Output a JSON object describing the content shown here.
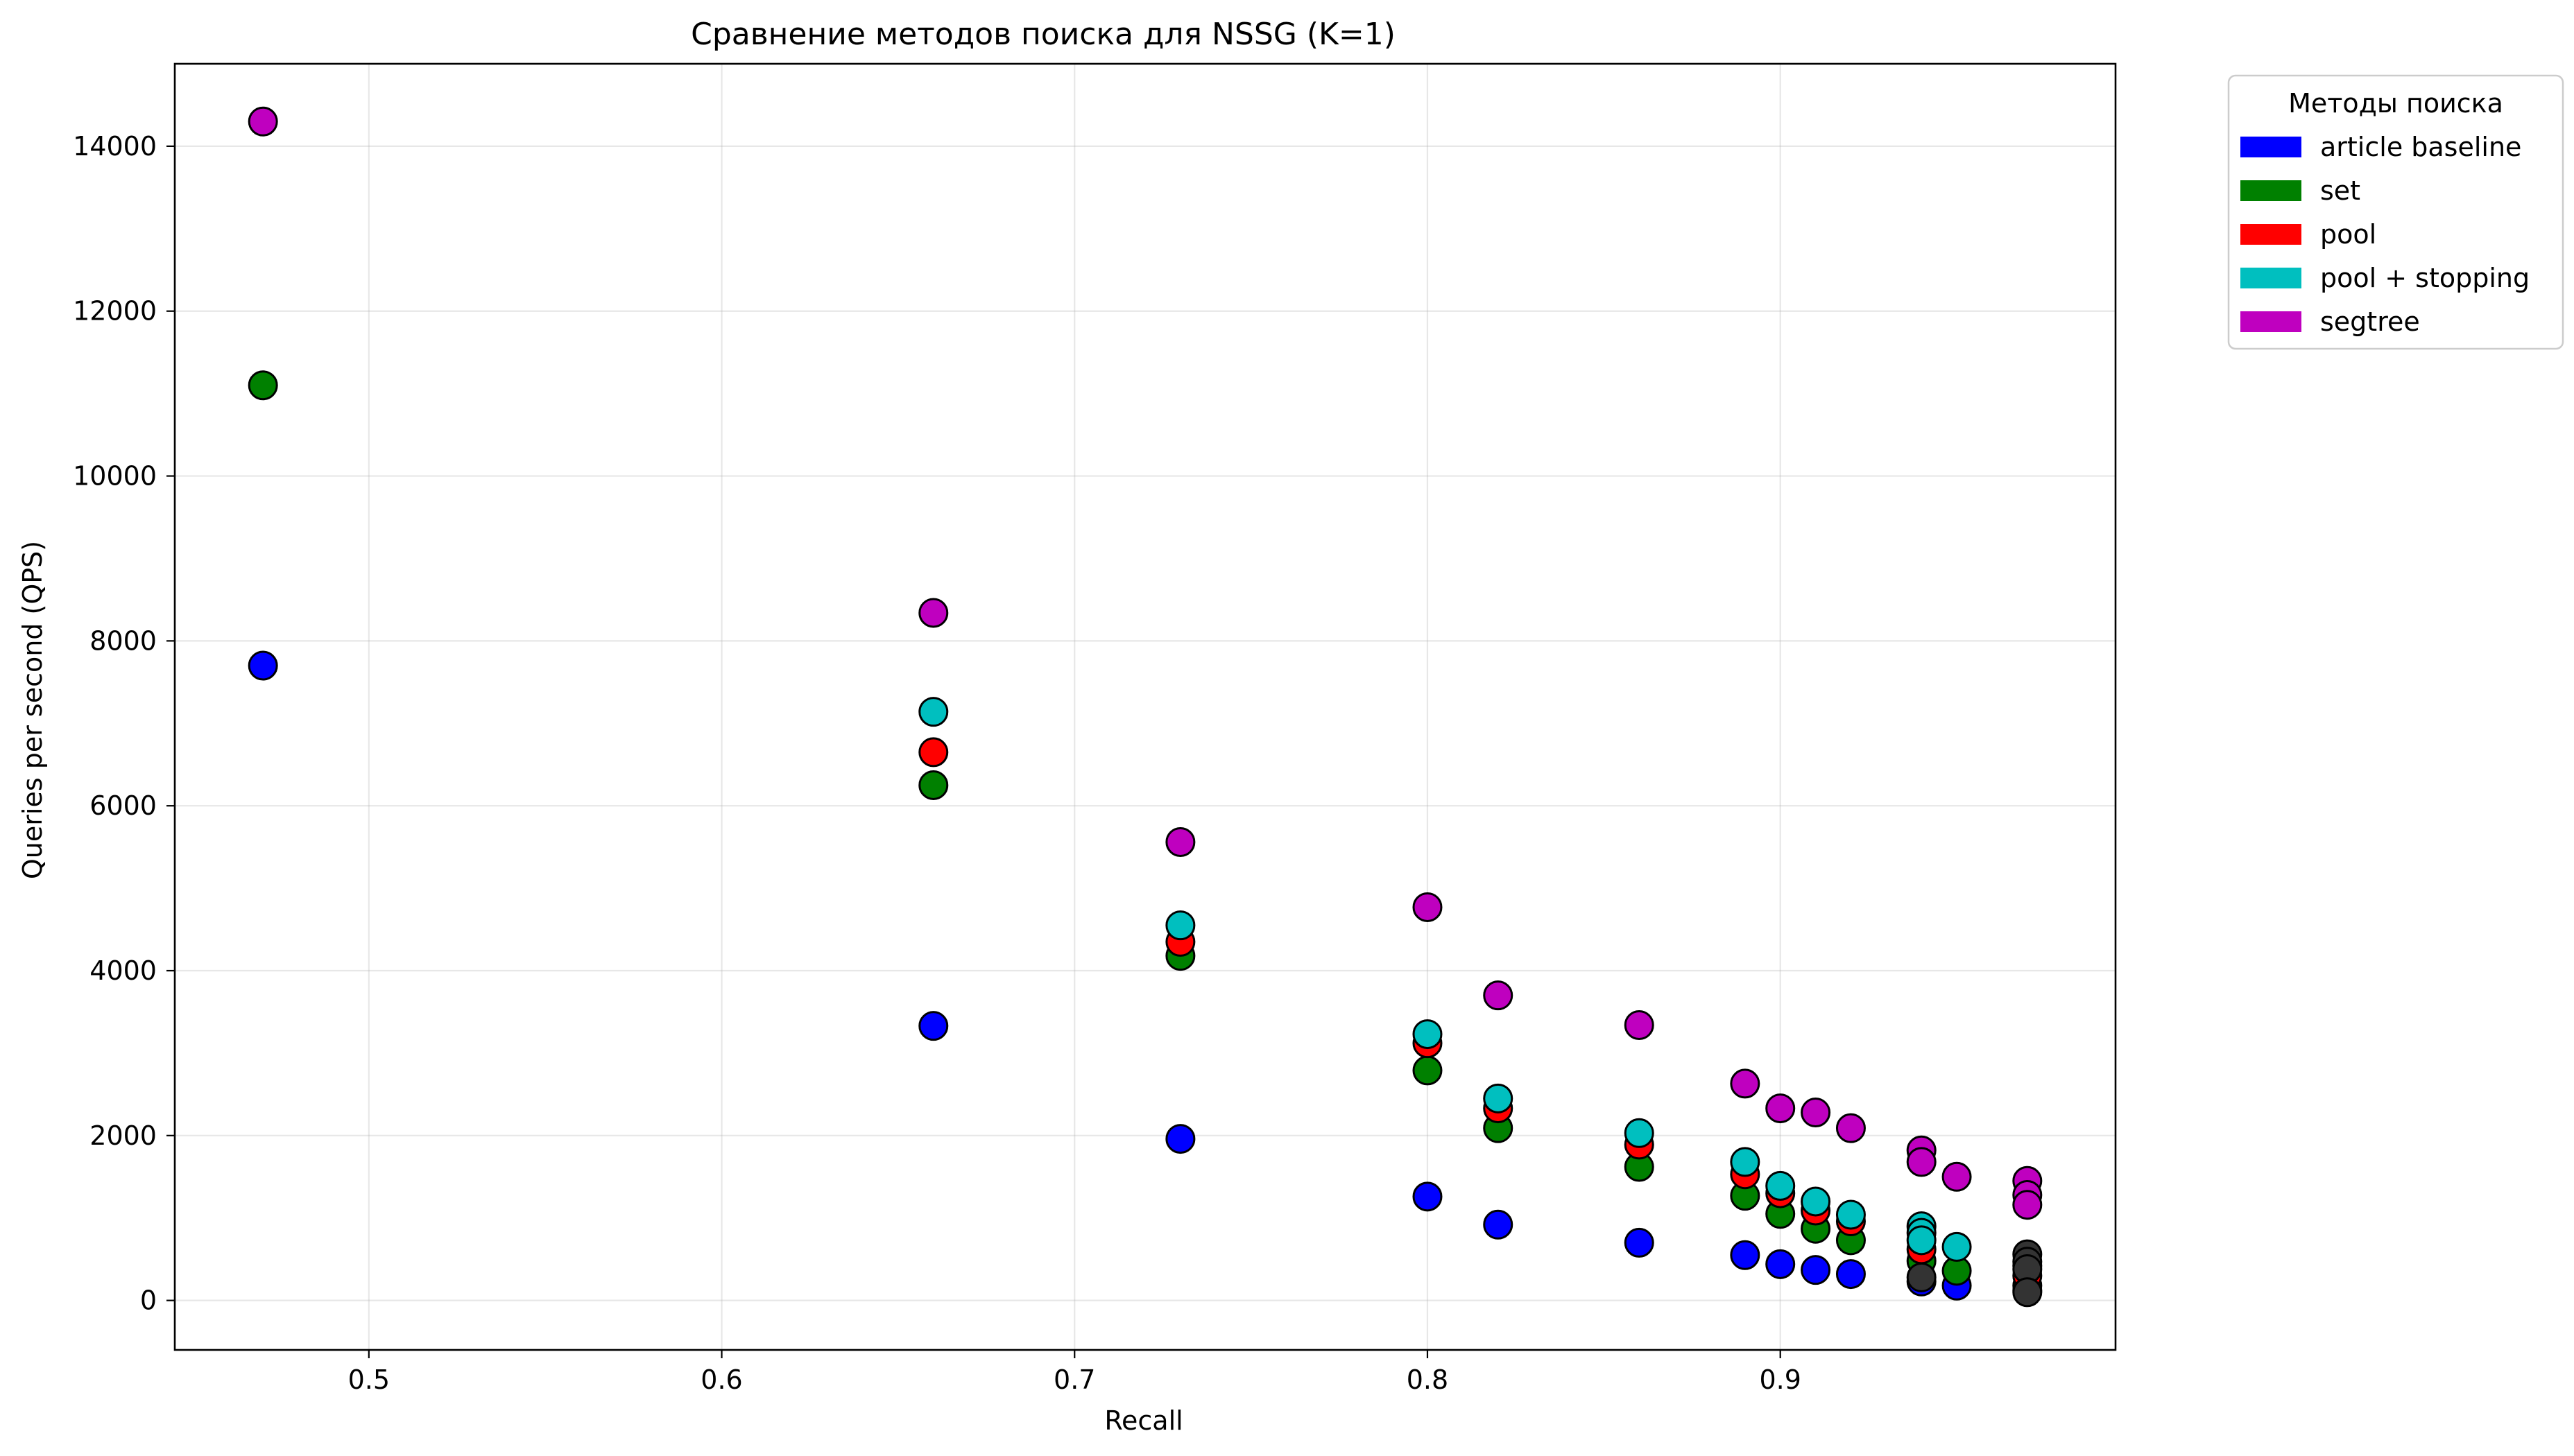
{
  "chart_data": {
    "type": "scatter",
    "title": "Сравнение методов поиска для NSSG (K=1)",
    "xlabel": "Recall",
    "ylabel": "Queries per second (QPS)",
    "xlim": [
      0.445,
      0.995
    ],
    "ylim": [
      -600,
      15000
    ],
    "xticks": [
      0.5,
      0.6,
      0.7,
      0.8,
      0.9
    ],
    "xtick_labels": [
      "0.5",
      "0.6",
      "0.7",
      "0.8",
      "0.9"
    ],
    "yticks": [
      0,
      2000,
      4000,
      6000,
      8000,
      10000,
      12000,
      14000
    ],
    "ytick_labels": [
      "0",
      "2000",
      "4000",
      "6000",
      "8000",
      "10000",
      "12000",
      "14000"
    ],
    "grid": true,
    "legend": {
      "title": "Методы поиска",
      "placement": "outside top-right"
    },
    "series": [
      {
        "name": "article baseline",
        "color": "#0000ff",
        "points": [
          [
            0.47,
            7700
          ],
          [
            0.66,
            3330
          ],
          [
            0.73,
            1960
          ],
          [
            0.8,
            1260
          ],
          [
            0.82,
            920
          ],
          [
            0.86,
            700
          ],
          [
            0.89,
            550
          ],
          [
            0.9,
            440
          ],
          [
            0.91,
            370
          ],
          [
            0.92,
            320
          ],
          [
            0.94,
            230
          ],
          [
            0.95,
            180
          ],
          [
            0.97,
            120
          ]
        ]
      },
      {
        "name": "set",
        "color": "#008000",
        "points": [
          [
            0.47,
            11100
          ],
          [
            0.66,
            6250
          ],
          [
            0.73,
            4180
          ],
          [
            0.8,
            2790
          ],
          [
            0.82,
            2090
          ],
          [
            0.86,
            1620
          ],
          [
            0.89,
            1270
          ],
          [
            0.9,
            1050
          ],
          [
            0.91,
            870
          ],
          [
            0.92,
            730
          ],
          [
            0.94,
            480
          ],
          [
            0.95,
            360
          ],
          [
            0.97,
            180
          ]
        ]
      },
      {
        "name": "pool",
        "color": "#ff0000",
        "points": [
          [
            0.66,
            6650
          ],
          [
            0.73,
            4350
          ],
          [
            0.8,
            3120
          ],
          [
            0.82,
            2330
          ],
          [
            0.86,
            1890
          ],
          [
            0.89,
            1530
          ],
          [
            0.9,
            1300
          ],
          [
            0.91,
            1090
          ],
          [
            0.92,
            960
          ],
          [
            0.94,
            620
          ],
          [
            0.97,
            300
          ]
        ]
      },
      {
        "name": "pool + stopping",
        "color": "#00bfbf",
        "points": [
          [
            0.66,
            7140
          ],
          [
            0.73,
            4550
          ],
          [
            0.8,
            3230
          ],
          [
            0.82,
            2450
          ],
          [
            0.86,
            2030
          ],
          [
            0.89,
            1680
          ],
          [
            0.9,
            1390
          ],
          [
            0.91,
            1200
          ],
          [
            0.92,
            1040
          ],
          [
            0.94,
            900
          ],
          [
            0.94,
            820
          ],
          [
            0.94,
            730
          ],
          [
            0.95,
            650
          ],
          [
            0.97,
            420
          ]
        ]
      },
      {
        "name": "segtree",
        "color": "#bf00bf",
        "points": [
          [
            0.47,
            14300
          ],
          [
            0.66,
            8340
          ],
          [
            0.73,
            5560
          ],
          [
            0.8,
            4770
          ],
          [
            0.82,
            3700
          ],
          [
            0.86,
            3340
          ],
          [
            0.89,
            2630
          ],
          [
            0.9,
            2330
          ],
          [
            0.91,
            2280
          ],
          [
            0.92,
            2090
          ],
          [
            0.94,
            1820
          ],
          [
            0.94,
            1680
          ],
          [
            0.95,
            1500
          ],
          [
            0.97,
            1450
          ],
          [
            0.97,
            1280
          ],
          [
            0.97,
            1160
          ]
        ]
      },
      {
        "name": "",
        "color": "#333333",
        "points": [
          [
            0.97,
            560
          ],
          [
            0.97,
            470
          ],
          [
            0.97,
            380
          ],
          [
            0.97,
            100
          ],
          [
            0.94,
            280
          ]
        ]
      }
    ]
  }
}
